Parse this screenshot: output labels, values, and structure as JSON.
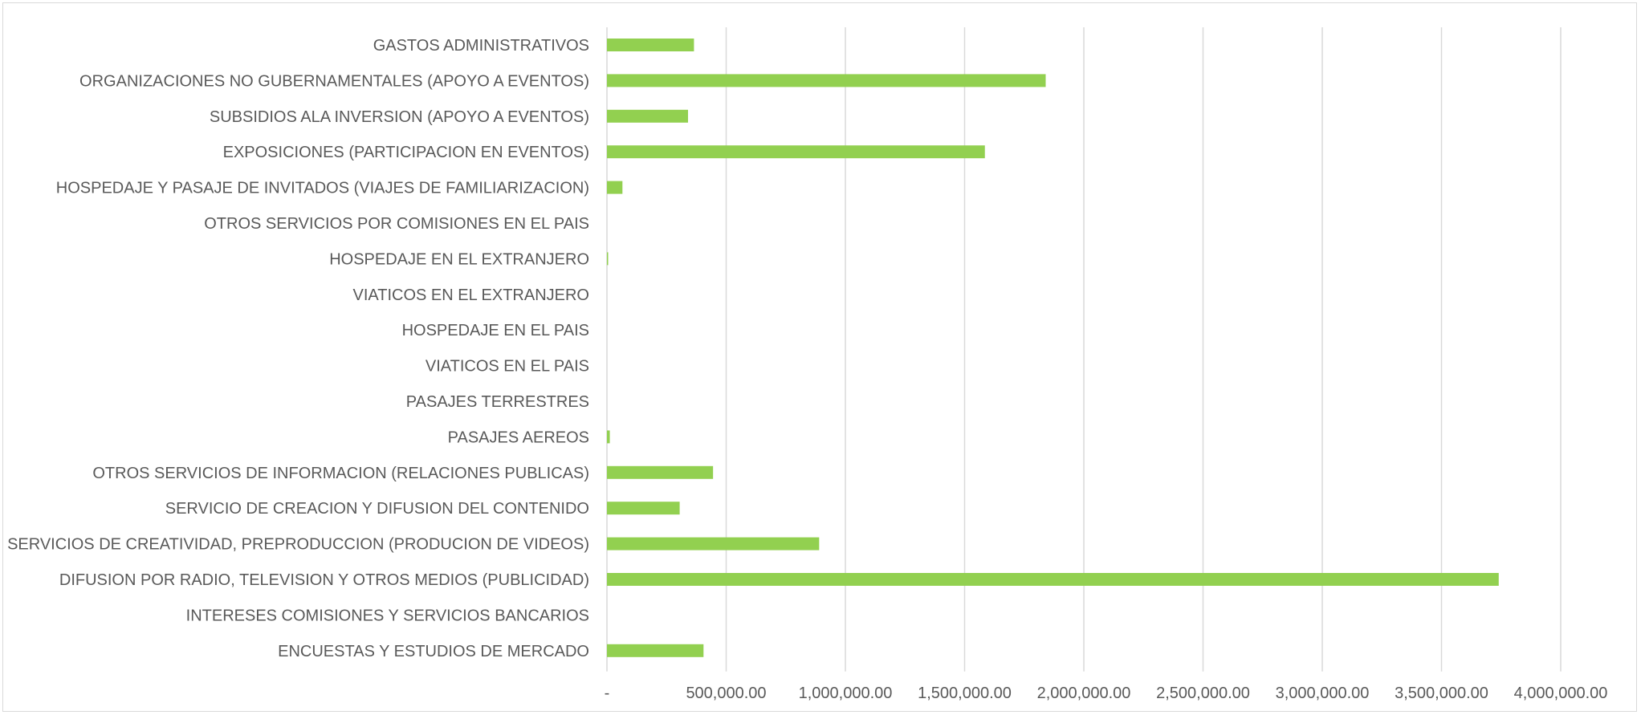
{
  "chart_data": {
    "type": "bar",
    "orientation": "horizontal",
    "title": "",
    "xlabel": "",
    "ylabel": "",
    "xlim": [
      0,
      4000000
    ],
    "grid": true,
    "legend": "none",
    "colors": {
      "bar": "#92d050",
      "grid": "#d9d9d9",
      "text": "#595959",
      "frame": "#d9d9d9"
    },
    "x_ticks": [
      {
        "value": 0,
        "label": "-"
      },
      {
        "value": 500000,
        "label": "500,000.00"
      },
      {
        "value": 1000000,
        "label": "1,000,000.00"
      },
      {
        "value": 1500000,
        "label": "1,500,000.00"
      },
      {
        "value": 2000000,
        "label": "2,000,000.00"
      },
      {
        "value": 2500000,
        "label": "2,500,000.00"
      },
      {
        "value": 3000000,
        "label": "3,000,000.00"
      },
      {
        "value": 3500000,
        "label": "3,500,000.00"
      },
      {
        "value": 4000000,
        "label": "4,000,000.00"
      }
    ],
    "categories": [
      "GASTOS ADMINISTRATIVOS",
      "ORGANIZACIONES NO GUBERNAMENTALES (APOYO A EVENTOS)",
      "SUBSIDIOS  ALA INVERSION (APOYO A EVENTOS)",
      "EXPOSICIONES (PARTICIPACION EN EVENTOS)",
      "HOSPEDAJE Y PASAJE DE INVITADOS (VIAJES DE FAMILIARIZACION)",
      "OTROS SERVICIOS POR COMISIONES EN EL PAIS",
      "HOSPEDAJE EN EL EXTRANJERO",
      "VIATICOS EN EL EXTRANJERO",
      "HOSPEDAJE EN EL PAIS",
      "VIATICOS EN EL PAIS",
      "PASAJES TERRESTRES",
      "PASAJES AEREOS",
      "OTROS SERVICIOS DE INFORMACION (RELACIONES PUBLICAS)",
      "SERVICIO DE CREACION Y DIFUSION DEL CONTENIDO",
      "SERVICIOS DE CREATIVIDAD, PREPRODUCCION  (PRODUCION DE VIDEOS)",
      "DIFUSION POR RADIO, TELEVISION Y OTROS MEDIOS (PUBLICIDAD)",
      "INTERESES COMISIONES Y SERVICIOS BANCARIOS",
      "ENCUESTAS Y ESTUDIOS DE MERCADO"
    ],
    "values": [
      365000,
      1840000,
      340000,
      1585000,
      65000,
      0,
      5000,
      0,
      0,
      0,
      0,
      12000,
      445000,
      305000,
      890000,
      3740000,
      0,
      405000
    ]
  }
}
